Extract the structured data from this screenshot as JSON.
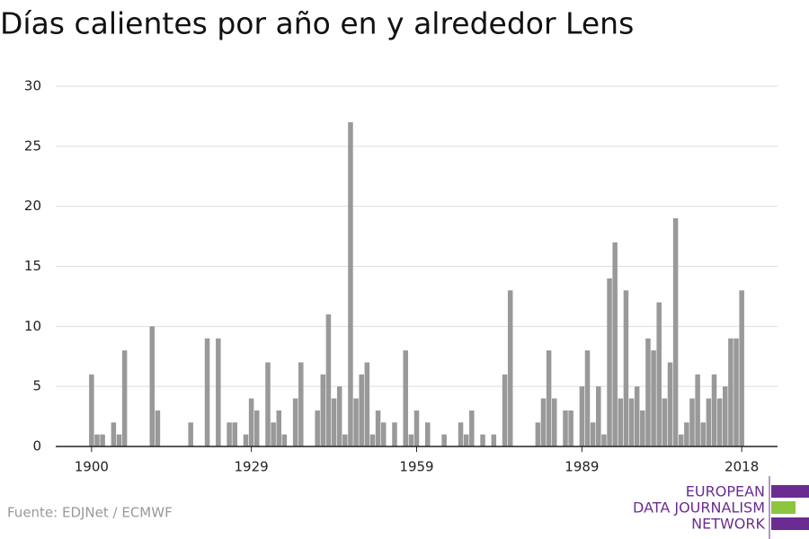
{
  "chart_data": {
    "type": "bar",
    "title": "Días calientes por año en y alrededor Lens",
    "source": "Fuente: EDJNet / ECMWF",
    "logo": [
      "EUROPEAN",
      "DATA JOURNALISM",
      "NETWORK"
    ],
    "color": "#999999",
    "grid": true,
    "xlim": [
      1893.5,
      2024.5
    ],
    "xticks": [
      1900,
      1929,
      1959,
      1989,
      2018
    ],
    "ylim": [
      0,
      30
    ],
    "yticks": [
      0,
      5,
      10,
      15,
      20,
      25,
      30
    ],
    "x": [
      1900,
      1901,
      1902,
      1903,
      1904,
      1905,
      1906,
      1907,
      1908,
      1909,
      1910,
      1911,
      1912,
      1913,
      1914,
      1915,
      1916,
      1917,
      1918,
      1919,
      1920,
      1921,
      1922,
      1923,
      1924,
      1925,
      1926,
      1927,
      1928,
      1929,
      1930,
      1931,
      1932,
      1933,
      1934,
      1935,
      1936,
      1937,
      1938,
      1939,
      1940,
      1941,
      1942,
      1943,
      1944,
      1945,
      1946,
      1947,
      1948,
      1949,
      1950,
      1951,
      1952,
      1953,
      1954,
      1955,
      1956,
      1957,
      1958,
      1959,
      1960,
      1961,
      1962,
      1963,
      1964,
      1965,
      1966,
      1967,
      1968,
      1969,
      1970,
      1971,
      1972,
      1973,
      1974,
      1975,
      1976,
      1977,
      1978,
      1979,
      1980,
      1981,
      1982,
      1983,
      1984,
      1985,
      1986,
      1987,
      1988,
      1989,
      1990,
      1991,
      1992,
      1993,
      1994,
      1995,
      1996,
      1997,
      1998,
      1999,
      2000,
      2001,
      2002,
      2003,
      2004,
      2005,
      2006,
      2007,
      2008,
      2009,
      2010,
      2011,
      2012,
      2013,
      2014,
      2015,
      2016,
      2017,
      2018
    ],
    "values": [
      6,
      1,
      1,
      0,
      2,
      1,
      8,
      0,
      0,
      0,
      0,
      10,
      3,
      0,
      0,
      0,
      0,
      0,
      2,
      0,
      0,
      9,
      0,
      9,
      0,
      2,
      2,
      0,
      1,
      4,
      3,
      0,
      7,
      2,
      3,
      1,
      0,
      4,
      7,
      0,
      0,
      3,
      6,
      11,
      4,
      5,
      1,
      27,
      4,
      6,
      7,
      1,
      3,
      2,
      0,
      2,
      0,
      8,
      1,
      3,
      0,
      2,
      0,
      0,
      1,
      0,
      0,
      2,
      1,
      3,
      0,
      1,
      0,
      1,
      0,
      6,
      13,
      0,
      0,
      0,
      0,
      2,
      4,
      8,
      4,
      0,
      3,
      3,
      0,
      5,
      8,
      2,
      5,
      1,
      14,
      17,
      4,
      13,
      4,
      5,
      3,
      9,
      8,
      12,
      4,
      7,
      19,
      1,
      2,
      4,
      6,
      2,
      4,
      6,
      4,
      5,
      9,
      9,
      13
    ]
  }
}
